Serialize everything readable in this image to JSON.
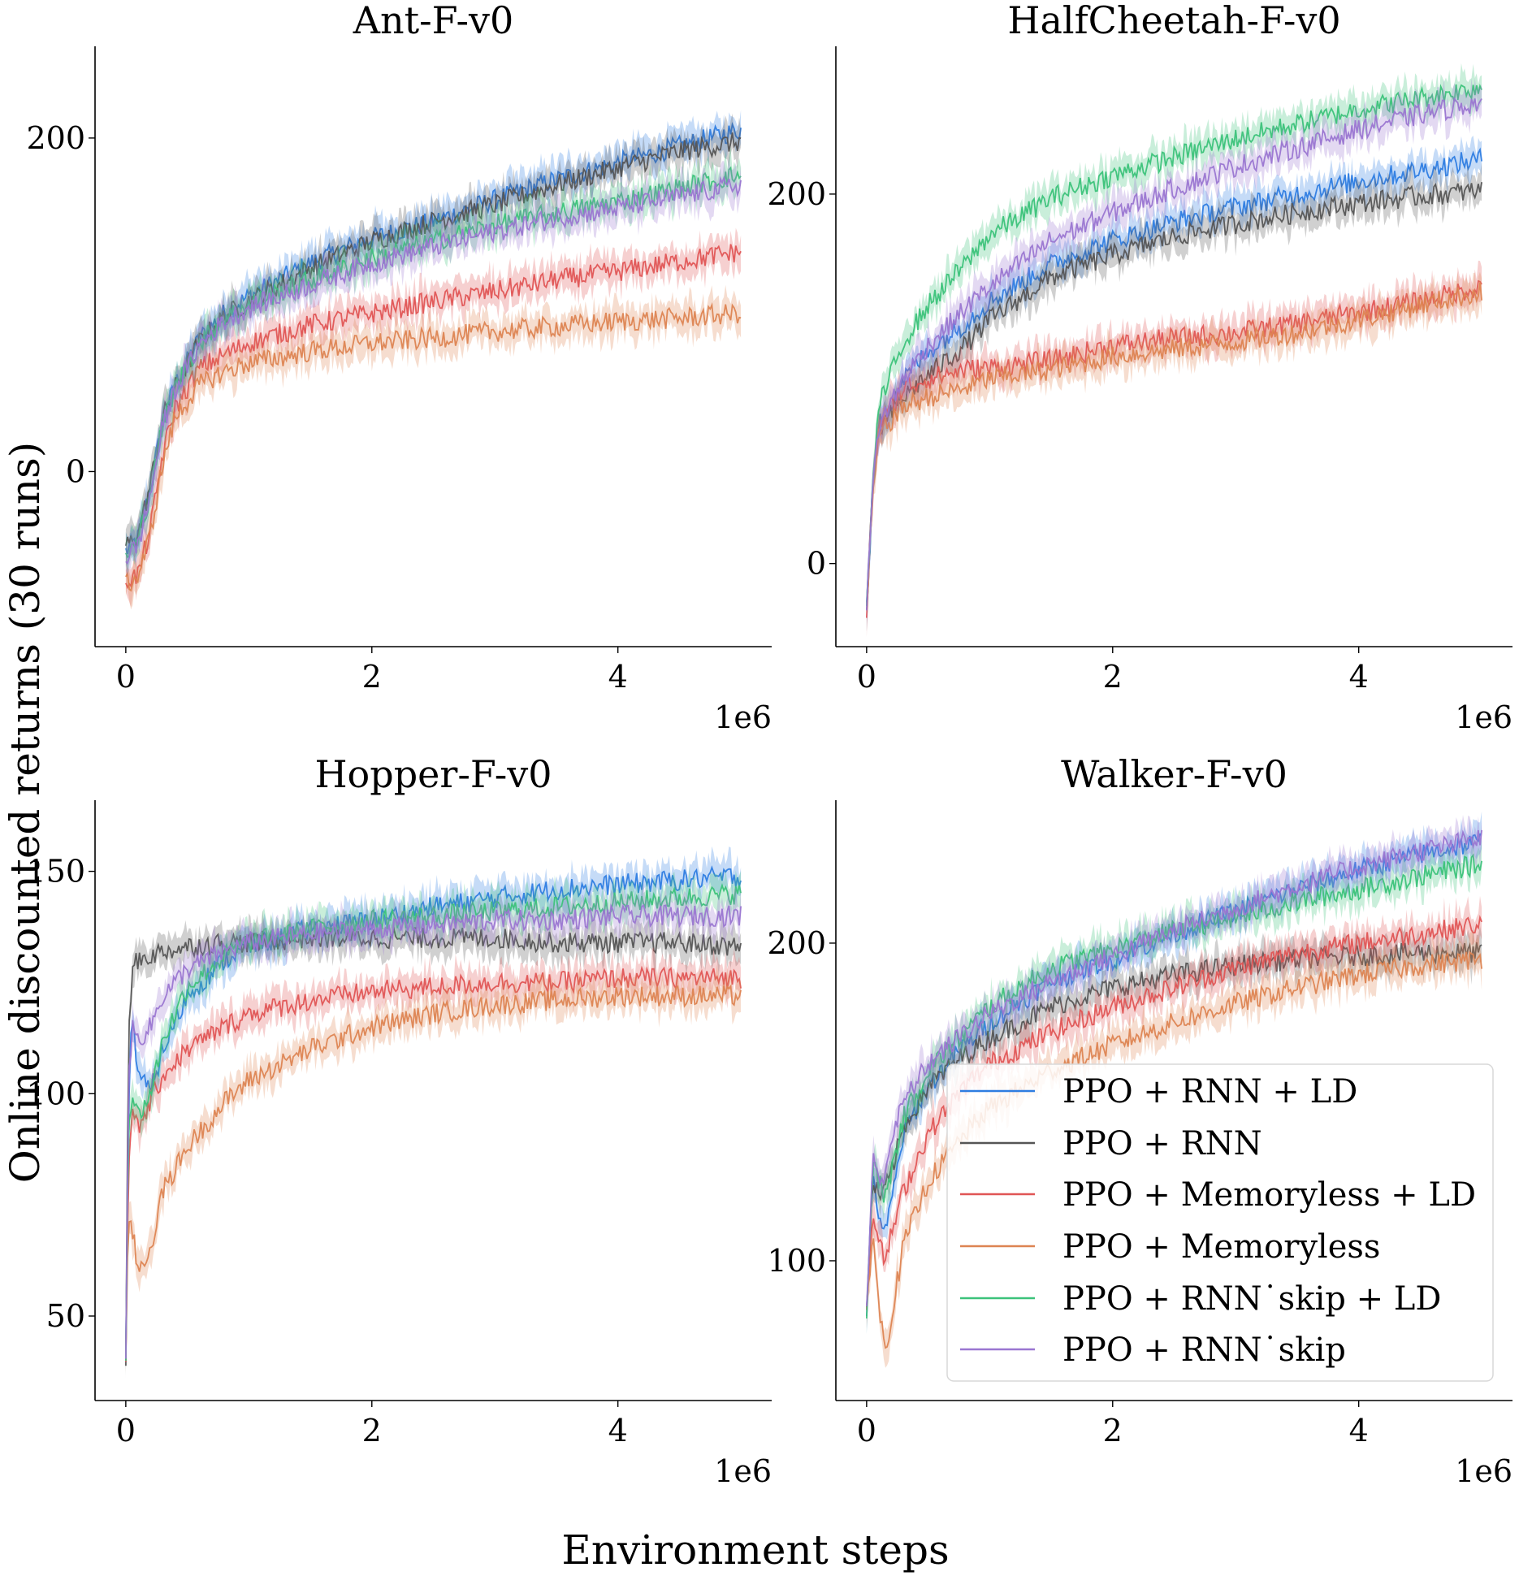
{
  "figure": {
    "xlabel": "Environment steps",
    "ylabel": "Online discounted returns (30 runs)"
  },
  "legend": {
    "location": "lower-right of Walker-F-v0 panel",
    "entries": [
      {
        "label": "PPO + RNN + LD",
        "color": "#2e7de1"
      },
      {
        "label": "PPO + RNN",
        "color": "#555555"
      },
      {
        "label": "PPO + Memoryless + LD",
        "color": "#e05555"
      },
      {
        "label": "PPO + Memoryless",
        "color": "#dd8452"
      },
      {
        "label": "PPO + RNN˙skip + LD",
        "color": "#3cc27a"
      },
      {
        "label": "PPO + RNN˙skip",
        "color": "#9a76d1"
      }
    ]
  },
  "chart_data": [
    {
      "type": "line",
      "title": "Ant-F-v0",
      "x_multiplier": "1e6",
      "xlim": [
        -0.25,
        5.25
      ],
      "ylim": [
        -105,
        255
      ],
      "xticks": [
        "0",
        "2",
        "4"
      ],
      "yticks": [
        "0",
        "200"
      ],
      "x": [
        0,
        0.1,
        0.2,
        0.3,
        0.4,
        0.6,
        0.8,
        1.0,
        1.5,
        2.0,
        2.5,
        3.0,
        3.5,
        4.0,
        4.5,
        5.0
      ],
      "series": [
        {
          "name": "PPO + RNN + LD",
          "color": "#2e7de1",
          "values": [
            -48,
            -40,
            -10,
            30,
            52,
            80,
            95,
            105,
            125,
            140,
            150,
            163,
            175,
            185,
            195,
            205
          ]
        },
        {
          "name": "PPO + RNN",
          "color": "#555555",
          "values": [
            -45,
            -38,
            -8,
            32,
            50,
            78,
            93,
            102,
            122,
            138,
            150,
            160,
            172,
            182,
            192,
            198
          ]
        },
        {
          "name": "PPO + Memoryless + LD",
          "color": "#e05555",
          "values": [
            -65,
            -62,
            -35,
            10,
            38,
            62,
            70,
            77,
            88,
            95,
            102,
            108,
            115,
            120,
            126,
            132
          ]
        },
        {
          "name": "PPO + Memoryless",
          "color": "#dd8452",
          "values": [
            -68,
            -63,
            -38,
            5,
            32,
            52,
            60,
            65,
            72,
            77,
            80,
            84,
            87,
            90,
            92,
            95
          ]
        },
        {
          "name": "PPO + RNN˙skip + LD",
          "color": "#3cc27a",
          "values": [
            -50,
            -42,
            -12,
            28,
            50,
            77,
            92,
            100,
            115,
            128,
            138,
            148,
            155,
            162,
            170,
            178
          ]
        },
        {
          "name": "PPO + RNN˙skip",
          "color": "#9a76d1",
          "values": [
            -52,
            -44,
            -14,
            27,
            49,
            76,
            90,
            98,
            112,
            125,
            135,
            144,
            152,
            158,
            165,
            172
          ]
        }
      ]
    },
    {
      "type": "line",
      "title": "HalfCheetah-F-v0",
      "x_multiplier": "1e6",
      "xlim": [
        -0.25,
        5.25
      ],
      "ylim": [
        -45,
        280
      ],
      "xticks": [
        "0",
        "2",
        "4"
      ],
      "yticks": [
        "0",
        "200"
      ],
      "x": [
        0,
        0.05,
        0.1,
        0.3,
        0.5,
        0.8,
        1.0,
        1.5,
        2.0,
        2.5,
        3.0,
        3.5,
        4.0,
        4.5,
        5.0
      ],
      "series": [
        {
          "name": "PPO + RNN + LD",
          "color": "#2e7de1",
          "values": [
            -25,
            40,
            75,
            100,
            115,
            130,
            142,
            162,
            175,
            185,
            193,
            200,
            207,
            213,
            219
          ]
        },
        {
          "name": "PPO + RNN",
          "color": "#555555",
          "values": [
            -25,
            40,
            72,
            90,
            102,
            118,
            132,
            155,
            167,
            177,
            184,
            190,
            195,
            199,
            202
          ]
        },
        {
          "name": "PPO + Memoryless + LD",
          "color": "#e05555",
          "values": [
            -25,
            40,
            75,
            95,
            100,
            105,
            106,
            110,
            118,
            122,
            125,
            130,
            136,
            142,
            150
          ]
        },
        {
          "name": "PPO + Memoryless",
          "color": "#dd8452",
          "values": [
            -25,
            35,
            70,
            85,
            90,
            95,
            100,
            105,
            112,
            116,
            120,
            125,
            132,
            140,
            147
          ]
        },
        {
          "name": "PPO + RNN˙skip + LD",
          "color": "#3cc27a",
          "values": [
            -25,
            45,
            85,
            120,
            140,
            162,
            178,
            198,
            210,
            220,
            230,
            238,
            246,
            252,
            258
          ]
        },
        {
          "name": "PPO + RNN˙skip",
          "color": "#9a76d1",
          "values": [
            -25,
            42,
            75,
            100,
            118,
            138,
            150,
            175,
            190,
            203,
            215,
            225,
            235,
            243,
            250
          ]
        }
      ]
    },
    {
      "type": "line",
      "title": "Hopper-F-v0",
      "x_multiplier": "1e6",
      "xlim": [
        -0.25,
        5.25
      ],
      "ylim": [
        31,
        166
      ],
      "xticks": [
        "0",
        "2",
        "4"
      ],
      "yticks": [
        "50",
        "100",
        "150"
      ],
      "x": [
        0,
        0.02,
        0.05,
        0.1,
        0.2,
        0.3,
        0.5,
        0.8,
        1.0,
        1.5,
        2.0,
        2.5,
        3.0,
        3.5,
        4.0,
        4.5,
        5.0
      ],
      "series": [
        {
          "name": "PPO + RNN + LD",
          "color": "#2e7de1",
          "values": [
            40,
            95,
            118,
            105,
            100,
            110,
            122,
            130,
            133,
            137,
            139,
            142,
            144,
            146,
            147,
            148,
            149
          ]
        },
        {
          "name": "PPO + RNN",
          "color": "#555555",
          "values": [
            38,
            110,
            128,
            130,
            131,
            132,
            133,
            134,
            134,
            135,
            135,
            135,
            135,
            134,
            134,
            134,
            133
          ]
        },
        {
          "name": "PPO + Memoryless + LD",
          "color": "#e05555",
          "values": [
            40,
            85,
            95,
            92,
            98,
            104,
            110,
            115,
            118,
            121,
            123,
            124,
            125,
            125,
            126,
            126,
            126
          ]
        },
        {
          "name": "PPO + Memoryless",
          "color": "#dd8452",
          "values": [
            40,
            70,
            70,
            60,
            65,
            78,
            88,
            98,
            103,
            110,
            115,
            118,
            120,
            121,
            122,
            122,
            122
          ]
        },
        {
          "name": "PPO + RNN˙skip + LD",
          "color": "#3cc27a",
          "values": [
            42,
            92,
            100,
            95,
            100,
            112,
            124,
            131,
            134,
            137,
            139,
            140,
            141,
            142,
            143,
            144,
            145
          ]
        },
        {
          "name": "PPO + RNN˙skip",
          "color": "#9a76d1",
          "values": [
            42,
            100,
            115,
            112,
            115,
            122,
            128,
            132,
            134,
            136,
            137,
            138,
            139,
            139,
            140,
            140,
            140
          ]
        }
      ]
    },
    {
      "type": "line",
      "title": "Walker-F-v0",
      "x_multiplier": "1e6",
      "xlim": [
        -0.25,
        5.25
      ],
      "ylim": [
        56,
        245
      ],
      "xticks": [
        "0",
        "2",
        "4"
      ],
      "yticks": [
        "100",
        "200"
      ],
      "x": [
        0,
        0.05,
        0.1,
        0.15,
        0.2,
        0.3,
        0.5,
        0.8,
        1.0,
        1.5,
        2.0,
        2.5,
        3.0,
        3.5,
        4.0,
        4.5,
        5.0
      ],
      "series": [
        {
          "name": "PPO + RNN + LD",
          "color": "#2e7de1",
          "values": [
            85,
            125,
            115,
            108,
            118,
            140,
            155,
            168,
            175,
            188,
            195,
            203,
            210,
            217,
            223,
            228,
            232
          ]
        },
        {
          "name": "PPO + RNN",
          "color": "#555555",
          "values": [
            85,
            125,
            120,
            122,
            128,
            142,
            155,
            165,
            170,
            180,
            186,
            190,
            193,
            195,
            196,
            197,
            197
          ]
        },
        {
          "name": "PPO + Memoryless + LD",
          "color": "#e05555",
          "values": [
            85,
            118,
            105,
            100,
            108,
            122,
            140,
            155,
            162,
            172,
            180,
            186,
            192,
            197,
            200,
            203,
            206
          ]
        },
        {
          "name": "PPO + Memoryless",
          "color": "#dd8452",
          "values": [
            85,
            110,
            85,
            72,
            82,
            105,
            125,
            140,
            148,
            160,
            168,
            175,
            181,
            186,
            190,
            193,
            195
          ]
        },
        {
          "name": "PPO + RNN˙skip + LD",
          "color": "#3cc27a",
          "values": [
            85,
            130,
            125,
            120,
            128,
            145,
            160,
            172,
            180,
            192,
            198,
            204,
            208,
            213,
            217,
            221,
            225
          ]
        },
        {
          "name": "PPO + RNN˙skip",
          "color": "#9a76d1",
          "values": [
            85,
            132,
            125,
            128,
            138,
            150,
            162,
            172,
            178,
            188,
            196,
            204,
            211,
            218,
            224,
            229,
            233
          ]
        }
      ]
    }
  ]
}
